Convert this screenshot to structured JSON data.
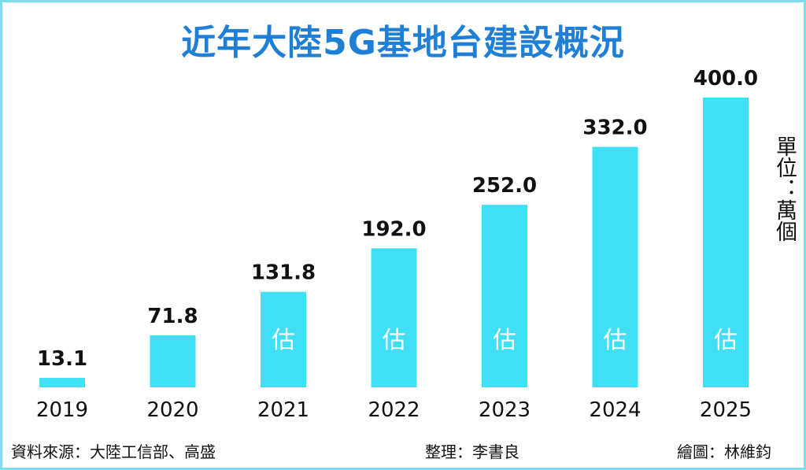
{
  "chart_data": {
    "type": "bar",
    "title": "近年大陸5G基地台建設概況",
    "unit": "單位：萬個",
    "categories": [
      "2019",
      "2020",
      "2021",
      "2022",
      "2023",
      "2024",
      "2025"
    ],
    "values": [
      13.1,
      71.8,
      131.8,
      192.0,
      252.0,
      332.0,
      400.0
    ],
    "value_labels": [
      "13.1",
      "71.8",
      "131.8",
      "192.0",
      "252.0",
      "332.0",
      "400.0"
    ],
    "estimated": [
      false,
      false,
      true,
      true,
      true,
      true,
      true
    ],
    "estimate_label": "估",
    "ylim": [
      0,
      400
    ],
    "grid": false,
    "legend": "none",
    "bar_color": "#3fe0f5"
  },
  "footer": {
    "source": "資料來源：大陸工信部、高盛",
    "editor": "整理：李書良",
    "artist": "繪圖：林維鈞"
  }
}
